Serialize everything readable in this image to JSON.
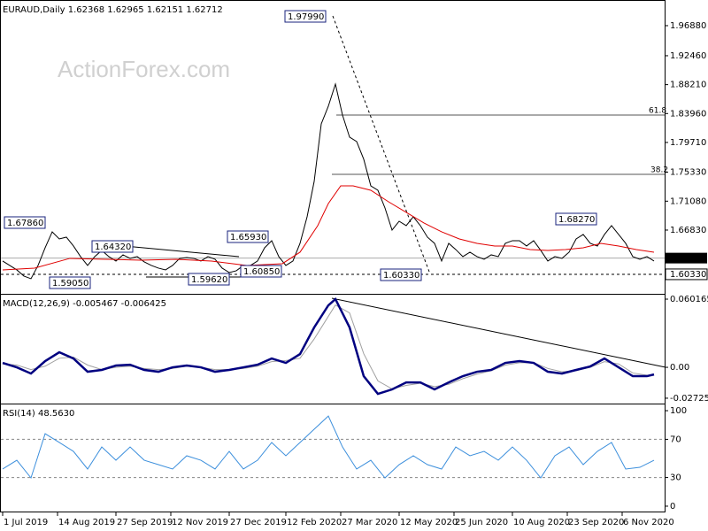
{
  "watermark": "ActionForex.com",
  "chart_data": [
    {
      "type": "line",
      "title": "EURAUD,Daily",
      "ohlc": [
        "1.62368",
        "1.62965",
        "1.62151",
        "1.62712"
      ],
      "xlim": [
        -1,
        374
      ],
      "ylim": [
        1.5759,
        2.0039
      ],
      "yticks": [
        {
          "value": 1.9688,
          "label": "1.96880"
        },
        {
          "value": 1.9246,
          "label": "1.92460"
        },
        {
          "value": 1.8821,
          "label": "1.88210"
        },
        {
          "value": 1.8396,
          "label": "1.83960"
        },
        {
          "value": 1.7971,
          "label": "1.79710"
        },
        {
          "value": 1.7533,
          "label": "1.75330"
        },
        {
          "value": 1.7108,
          "label": "1.71080"
        },
        {
          "value": 1.6683,
          "label": "1.66830"
        },
        {
          "value": 1.62712,
          "label": "1.62712"
        },
        {
          "value": 1.6033,
          "label": "1.60330"
        }
      ],
      "annotations": [
        "1.97990",
        "1.67860",
        "1.64320",
        "1.59050",
        "1.65930",
        "1.59620",
        "1.60850",
        "1.60330",
        "1.68270"
      ],
      "fib_labels": [
        "61.8",
        "38.2"
      ],
      "series": [
        {
          "color": "#000000",
          "x": [
            0,
            4,
            8,
            12,
            16,
            20,
            24,
            28,
            32,
            36,
            40,
            44,
            48,
            52,
            56,
            60,
            64,
            68,
            72,
            76,
            80,
            84,
            88,
            92,
            96,
            100,
            104,
            108,
            112,
            116,
            120,
            124,
            128,
            132,
            136,
            140,
            144,
            148,
            152,
            156,
            160,
            164,
            168,
            172,
            176,
            180,
            184,
            188,
            192,
            196,
            200,
            204,
            208,
            212,
            216,
            220,
            224,
            228,
            232,
            236,
            240,
            244,
            248,
            252,
            256,
            260,
            264,
            268,
            272,
            276,
            280,
            284,
            288,
            292,
            296,
            300,
            304,
            308,
            312,
            316,
            320,
            324,
            328,
            332,
            336,
            340,
            344,
            348,
            352,
            356,
            360,
            364,
            368
          ],
          "values": [
            1.6228,
            1.6163,
            1.6098,
            1.6007,
            1.5968,
            1.6163,
            1.6423,
            1.6657,
            1.6553,
            1.6579,
            1.6449,
            1.6293,
            1.6163,
            1.6293,
            1.6384,
            1.6293,
            1.6228,
            1.6319,
            1.6267,
            1.6293,
            1.6215,
            1.6163,
            1.6124,
            1.6098,
            1.6163,
            1.6267,
            1.628,
            1.6267,
            1.6228,
            1.6293,
            1.6254,
            1.6124,
            1.6059,
            1.6085,
            1.6163,
            1.6163,
            1.6228,
            1.6423,
            1.6527,
            1.6293,
            1.6163,
            1.6228,
            1.6488,
            1.6878,
            1.7398,
            1.8244,
            1.8504,
            1.8829,
            1.8374,
            1.8049,
            1.7984,
            1.7724,
            1.7333,
            1.7268,
            1.7008,
            1.6683,
            1.6813,
            1.6748,
            1.6878,
            1.6748,
            1.6579,
            1.6488,
            1.6228,
            1.6488,
            1.6397,
            1.6293,
            1.6358,
            1.6293,
            1.6254,
            1.6319,
            1.6293,
            1.6488,
            1.6527,
            1.6527,
            1.6449,
            1.6527,
            1.6384,
            1.6228,
            1.6293,
            1.6267,
            1.6358,
            1.6553,
            1.6618,
            1.6488,
            1.6449,
            1.6618,
            1.6748,
            1.6618,
            1.6488,
            1.6293,
            1.6254,
            1.6293,
            1.6228
          ]
        },
        {
          "color": "#e00000",
          "x": [
            0,
            18,
            38,
            58,
            78,
            98,
            118,
            138,
            158,
            168,
            178,
            184,
            191,
            198,
            208,
            218,
            228,
            238,
            248,
            258,
            268,
            278,
            288,
            298,
            308,
            318,
            328,
            338,
            348,
            358,
            368
          ],
          "values": [
            1.6098,
            1.6124,
            1.6267,
            1.6254,
            1.6241,
            1.6254,
            1.6228,
            1.6163,
            1.6189,
            1.6358,
            1.6748,
            1.7073,
            1.7333,
            1.7333,
            1.7268,
            1.7099,
            1.6943,
            1.6787,
            1.6657,
            1.6553,
            1.6488,
            1.6449,
            1.6449,
            1.6397,
            1.6384,
            1.6397,
            1.6423,
            1.6488,
            1.6449,
            1.6397,
            1.6358
          ]
        }
      ]
    },
    {
      "type": "line",
      "title": "MACD(12,26,9)",
      "readout": [
        "-0.005467",
        "-0.006425"
      ],
      "xlim": [
        -1,
        374
      ],
      "ylim": [
        -0.0312,
        0.0633
      ],
      "yticks": [
        {
          "value": 0.060165,
          "label": "0.060165"
        },
        {
          "value": 0,
          "label": "0.00"
        },
        {
          "value": -0.02725,
          "label": "-0.02725"
        }
      ],
      "x": [
        0,
        8,
        16,
        24,
        32,
        40,
        48,
        56,
        64,
        72,
        80,
        88,
        96,
        104,
        112,
        120,
        128,
        136,
        144,
        152,
        160,
        168,
        176,
        184,
        188,
        196,
        204,
        212,
        220,
        228,
        236,
        244,
        252,
        260,
        268,
        276,
        284,
        292,
        300,
        308,
        316,
        324,
        332,
        340,
        348,
        356,
        364,
        368
      ],
      "series": [
        {
          "color": "#a0a0a0",
          "values": [
            0.003,
            0.002,
            -0.002,
            0.001,
            0.008,
            0.009,
            0.002,
            -0.002,
            0,
            0.001,
            -0.001,
            -0.002,
            -0.001,
            0.001,
            0,
            -0.002,
            -0.002,
            -0.001,
            0.001,
            0.005,
            0.006,
            0.008,
            0.025,
            0.045,
            0.055,
            0.048,
            0.012,
            -0.012,
            -0.019,
            -0.016,
            -0.014,
            -0.017,
            -0.015,
            -0.01,
            -0.006,
            -0.003,
            0.002,
            0.004,
            0.004,
            -0.001,
            -0.004,
            -0.003,
            0,
            0.005,
            0.003,
            -0.005,
            -0.007,
            -0.0064
          ]
        },
        {
          "color": "#000080",
          "values": [
            0.0039,
            0,
            -0.0055,
            0.0055,
            0.0133,
            0.0078,
            -0.0039,
            -0.0023,
            0.0016,
            0.0023,
            -0.0023,
            -0.0039,
            0,
            0.0016,
            0,
            -0.0039,
            -0.0023,
            0,
            0.0023,
            0.0078,
            0.0039,
            0.0117,
            0.0352,
            0.0547,
            0.0602,
            0.0352,
            -0.0078,
            -0.0234,
            -0.0195,
            -0.0133,
            -0.0133,
            -0.0195,
            -0.0133,
            -0.0078,
            -0.0039,
            -0.0023,
            0.0039,
            0.0055,
            0.0039,
            -0.0039,
            -0.0055,
            -0.0023,
            0.0008,
            0.0078,
            0,
            -0.0078,
            -0.0078,
            -0.0063
          ]
        }
      ]
    },
    {
      "type": "line",
      "title": "RSI(14)",
      "readout": [
        "48.5630"
      ],
      "xlim": [
        -1,
        374
      ],
      "ylim": [
        -5.6,
        105.6
      ],
      "yticks": [
        100,
        70,
        30,
        0
      ],
      "levels": [
        70,
        30
      ],
      "xticks": [
        {
          "value": 0,
          "label": "1 Jul 2019"
        },
        {
          "value": 31,
          "label": "14 Aug 2019"
        },
        {
          "value": 64,
          "label": "27 Sep 2019"
        },
        {
          "value": 95,
          "label": "12 Nov 2019"
        },
        {
          "value": 128,
          "label": "27 Dec 2019"
        },
        {
          "value": 160,
          "label": "12 Feb 2020"
        },
        {
          "value": 191,
          "label": "27 Mar 2020"
        },
        {
          "value": 224,
          "label": "12 May 2020"
        },
        {
          "value": 255,
          "label": "25 Jun 2020"
        },
        {
          "value": 288,
          "label": "10 Aug 2020"
        },
        {
          "value": 319,
          "label": "23 Sep 2020"
        },
        {
          "value": 350,
          "label": "6 Nov 2020"
        }
      ],
      "x": [
        0,
        8,
        16,
        24,
        32,
        40,
        48,
        56,
        64,
        72,
        80,
        88,
        96,
        104,
        112,
        120,
        128,
        136,
        144,
        152,
        160,
        168,
        176,
        184,
        192,
        200,
        208,
        216,
        224,
        232,
        240,
        248,
        256,
        264,
        272,
        280,
        288,
        296,
        304,
        312,
        320,
        328,
        336,
        344,
        352,
        360,
        368
      ],
      "series": [
        {
          "color": "#3c8fdc",
          "values": [
            38.9,
            48.1,
            29.6,
            75.9,
            66.7,
            57.4,
            38.9,
            62.0,
            48.1,
            62.0,
            48.1,
            43.5,
            38.9,
            52.8,
            48.1,
            38.9,
            57.4,
            38.9,
            48.1,
            66.7,
            52.8,
            66.7,
            80.6,
            94.4,
            62.0,
            38.9,
            48.1,
            29.6,
            43.5,
            52.8,
            43.5,
            38.9,
            62.0,
            52.8,
            57.4,
            48.1,
            62.0,
            48.1,
            29.6,
            52.8,
            62.0,
            43.5,
            57.4,
            66.7,
            38.9,
            40.7,
            48.1
          ]
        }
      ]
    }
  ]
}
